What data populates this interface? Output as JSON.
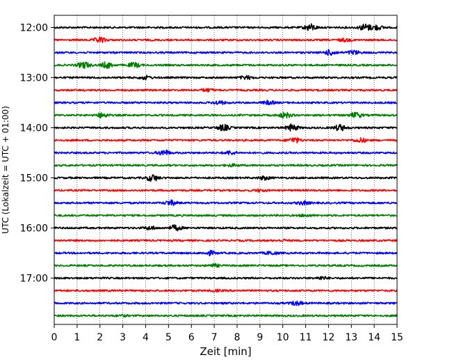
{
  "chart_data": {
    "type": "line",
    "title": "",
    "xlabel": "Zeit  [min]",
    "ylabel": "UTC (Lokalzeit = UTC + 01:00)",
    "xlim": [
      0,
      15
    ],
    "x_ticks": [
      0,
      1,
      2,
      3,
      4,
      5,
      6,
      7,
      8,
      9,
      10,
      11,
      12,
      13,
      14,
      15
    ],
    "y_ticks": [
      {
        "label": "12:00",
        "trace": 0
      },
      {
        "label": "13:00",
        "trace": 4
      },
      {
        "label": "14:00",
        "trace": 8
      },
      {
        "label": "15:00",
        "trace": 12
      },
      {
        "label": "16:00",
        "trace": 16
      },
      {
        "label": "17:00",
        "trace": 20
      }
    ],
    "grid": "vertical-dotted",
    "legend": "none",
    "trace_colors": [
      "#000000",
      "#ff0000",
      "#0000ff",
      "#008000"
    ],
    "traces": [
      {
        "start": "12:00",
        "bursts": [
          {
            "t": 11.2,
            "a": 1.0
          },
          {
            "t": 13.6,
            "a": 1.0
          },
          {
            "t": 14.1,
            "a": 0.7
          }
        ]
      },
      {
        "start": "12:15",
        "bursts": [
          {
            "t": 2.0,
            "a": 0.8
          },
          {
            "t": 12.7,
            "a": 0.4
          }
        ]
      },
      {
        "start": "12:30",
        "bursts": [
          {
            "t": 12.1,
            "a": 0.8
          },
          {
            "t": 13.1,
            "a": 0.6
          }
        ]
      },
      {
        "start": "12:45",
        "bursts": [
          {
            "t": 1.3,
            "a": 1.0
          },
          {
            "t": 2.3,
            "a": 0.9
          },
          {
            "t": 3.5,
            "a": 0.7
          }
        ]
      },
      {
        "start": "13:00",
        "bursts": [
          {
            "t": 4.0,
            "a": 0.5
          },
          {
            "t": 8.4,
            "a": 0.5
          }
        ]
      },
      {
        "start": "13:15",
        "bursts": [
          {
            "t": 6.7,
            "a": 0.4
          }
        ]
      },
      {
        "start": "13:30",
        "bursts": [
          {
            "t": 7.2,
            "a": 0.5
          },
          {
            "t": 9.4,
            "a": 0.5
          }
        ]
      },
      {
        "start": "13:45",
        "bursts": [
          {
            "t": 2.1,
            "a": 0.7
          },
          {
            "t": 10.1,
            "a": 0.8
          },
          {
            "t": 13.2,
            "a": 0.8
          }
        ]
      },
      {
        "start": "14:00",
        "bursts": [
          {
            "t": 7.4,
            "a": 0.9
          },
          {
            "t": 10.4,
            "a": 1.0
          },
          {
            "t": 12.5,
            "a": 0.9
          }
        ]
      },
      {
        "start": "14:15",
        "bursts": [
          {
            "t": 10.5,
            "a": 0.8
          },
          {
            "t": 13.4,
            "a": 0.6
          }
        ]
      },
      {
        "start": "14:30",
        "bursts": [
          {
            "t": 4.8,
            "a": 0.8
          },
          {
            "t": 7.7,
            "a": 0.5
          }
        ]
      },
      {
        "start": "14:45",
        "bursts": [
          {
            "t": 7.8,
            "a": 0.3
          }
        ]
      },
      {
        "start": "15:00",
        "bursts": [
          {
            "t": 4.3,
            "a": 1.0
          },
          {
            "t": 9.2,
            "a": 0.5
          }
        ]
      },
      {
        "start": "15:15",
        "bursts": [
          {
            "t": 9.0,
            "a": 0.3
          }
        ]
      },
      {
        "start": "15:30",
        "bursts": [
          {
            "t": 5.1,
            "a": 0.7
          },
          {
            "t": 10.9,
            "a": 0.5
          }
        ]
      },
      {
        "start": "15:45",
        "bursts": [
          {
            "t": 11.0,
            "a": 0.3
          }
        ]
      },
      {
        "start": "16:00",
        "bursts": [
          {
            "t": 5.3,
            "a": 0.8
          },
          {
            "t": 4.2,
            "a": 0.5
          }
        ]
      },
      {
        "start": "16:15",
        "bursts": [
          {
            "t": 10.0,
            "a": 0.2
          }
        ]
      },
      {
        "start": "16:30",
        "bursts": [
          {
            "t": 6.8,
            "a": 0.6
          },
          {
            "t": 9.5,
            "a": 0.5
          }
        ]
      },
      {
        "start": "16:45",
        "bursts": [
          {
            "t": 7.0,
            "a": 0.4
          }
        ]
      },
      {
        "start": "17:00",
        "bursts": [
          {
            "t": 11.7,
            "a": 0.4
          }
        ]
      },
      {
        "start": "17:15",
        "bursts": [
          {
            "t": 7.1,
            "a": 0.2
          }
        ]
      },
      {
        "start": "17:30",
        "bursts": [
          {
            "t": 10.6,
            "a": 0.6
          }
        ]
      },
      {
        "start": "17:45",
        "bursts": [
          {
            "t": 3.0,
            "a": 0.2
          }
        ]
      }
    ]
  }
}
